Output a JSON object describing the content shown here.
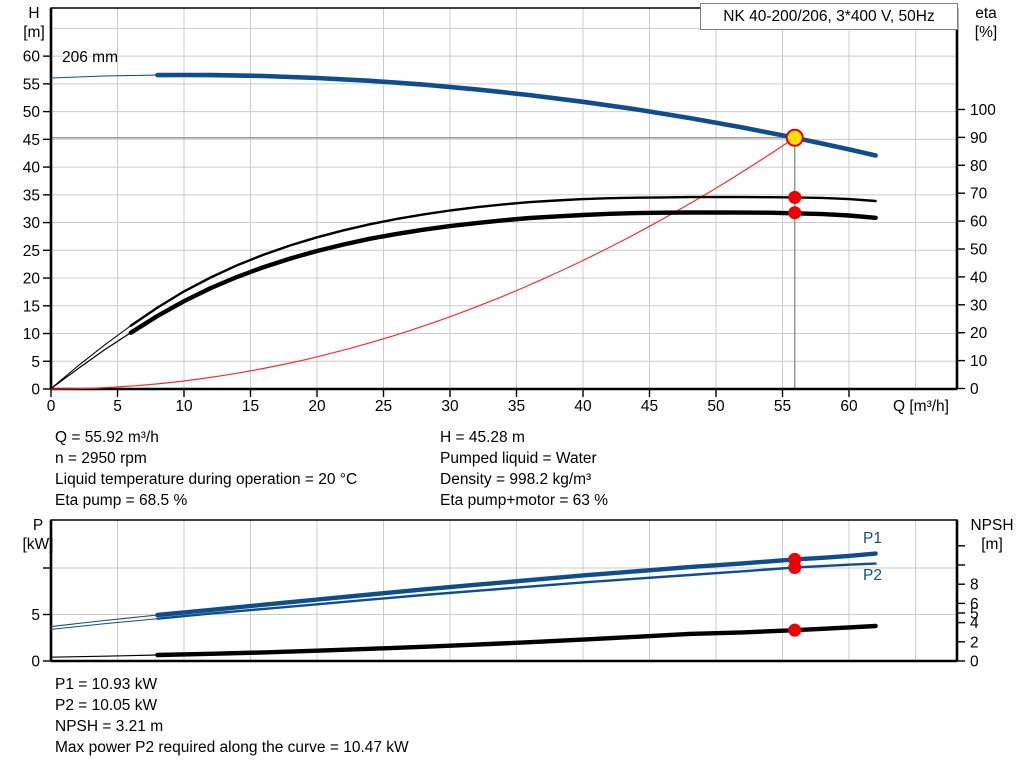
{
  "title": "NK 40-200/206, 3*400 V, 50Hz",
  "colors": {
    "curve_blue": "#0f4e8c",
    "black": "#000000",
    "system_red": "#ff2a2a",
    "dot_red": "#f20000",
    "duty_yellow": "#ffdf00",
    "duty_ring_red": "#e60000",
    "grid": "#cccccc",
    "duty_line": "#8a8a8a"
  },
  "top_chart": {
    "y_left_label": [
      "H",
      "[m]"
    ],
    "y_right_label": [
      "eta",
      "[%]"
    ],
    "x_label": "Q [m³/h]",
    "impeller": "206 mm",
    "h_ticks": [
      60,
      55,
      50,
      45,
      40,
      35,
      30,
      25,
      20,
      15,
      10,
      5,
      0
    ],
    "eta_ticks": [
      100,
      90,
      80,
      70,
      60,
      50,
      40,
      30,
      20,
      10,
      0
    ],
    "q_ticks": [
      0,
      5,
      10,
      15,
      20,
      25,
      30,
      35,
      40,
      45,
      50,
      55,
      60
    ]
  },
  "bottom_chart": {
    "y_left_label": [
      "P",
      "[kW]"
    ],
    "y_right_label": [
      "NPSH",
      "[m]"
    ],
    "p_ticks": [
      {
        "value": 10,
        "label": ""
      },
      {
        "value": 5,
        "label": "5"
      },
      {
        "value": 0,
        "label": "0"
      }
    ],
    "npsh_ticks": [
      {
        "value": 12,
        "label": ""
      },
      {
        "value": 10,
        "label": ""
      },
      {
        "value": 8,
        "label": "8"
      },
      {
        "value": 6,
        "label": "6"
      },
      {
        "value": 5,
        "label": "5"
      },
      {
        "value": 4,
        "label": "4"
      },
      {
        "value": 2,
        "label": "2"
      },
      {
        "value": 0,
        "label": "0"
      }
    ],
    "p1_label": "P1",
    "p2_label": "P2"
  },
  "info_top": {
    "left": [
      "Q = 55.92 m³/h",
      "n = 2950 rpm",
      "Liquid temperature during operation = 20 °C",
      "Eta pump = 68.5 %"
    ],
    "right": [
      "H = 45.28 m",
      "Pumped liquid = Water",
      "Density = 998.2 kg/m³",
      "Eta pump+motor = 63 %"
    ]
  },
  "info_bottom": [
    "P1 = 10.93 kW",
    "P2 = 10.05 kW",
    "NPSH = 3.21 m",
    "Max power P2 required along the curve = 10.47 kW"
  ],
  "chart_data": [
    {
      "type": "line",
      "title": "NK 40-200/206, 3*400 V, 50Hz",
      "xlabel": "Q [m³/h]",
      "ylabel": "H [m]",
      "y2label": "eta [%]",
      "xlim": [
        0,
        68
      ],
      "ylim": [
        0,
        68.7
      ],
      "y2lim": [
        0,
        100
      ],
      "grid": true,
      "duty_point": {
        "Q": 55.92,
        "H": 45.28
      },
      "system_curve": {
        "from": [
          0,
          0
        ],
        "to": [
          55.92,
          45.28
        ],
        "shape": "quadratic"
      },
      "series": [
        {
          "name": "head-206mm",
          "axis": "y",
          "color": "#0f4e8c",
          "width": 4.6,
          "thin_width": 1.1,
          "thick_from": 6,
          "points": [
            [
              0,
              56.06
            ],
            [
              4,
              56.41
            ],
            [
              8,
              56.58
            ],
            [
              10,
              56.6
            ],
            [
              12,
              56.58
            ],
            [
              16,
              56.41
            ],
            [
              20,
              56.06
            ],
            [
              24,
              55.55
            ],
            [
              28,
              54.86
            ],
            [
              32,
              54.0
            ],
            [
              36,
              52.97
            ],
            [
              40,
              51.77
            ],
            [
              44,
              50.39
            ],
            [
              48,
              48.85
            ],
            [
              52,
              47.13
            ],
            [
              55.92,
              45.28
            ],
            [
              58,
              44.24
            ],
            [
              60,
              43.18
            ],
            [
              62,
              42.08
            ]
          ]
        },
        {
          "name": "eta-pump",
          "axis": "y2",
          "color": "#000000",
          "width": 2.4,
          "thin_width": 1.0,
          "thick_from": 6,
          "points": [
            [
              0,
              0
            ],
            [
              2,
              8
            ],
            [
              4,
              15.5
            ],
            [
              6,
              22.5
            ],
            [
              8,
              29
            ],
            [
              10,
              34.8
            ],
            [
              12,
              39.8
            ],
            [
              14,
              44.2
            ],
            [
              16,
              48
            ],
            [
              18,
              51.3
            ],
            [
              20,
              54.2
            ],
            [
              22,
              56.7
            ],
            [
              24,
              58.9
            ],
            [
              26,
              60.8
            ],
            [
              28,
              62.4
            ],
            [
              30,
              63.8
            ],
            [
              32,
              65
            ],
            [
              34,
              66
            ],
            [
              36,
              66.8
            ],
            [
              38,
              67.4
            ],
            [
              40,
              67.9
            ],
            [
              42,
              68.2
            ],
            [
              44,
              68.4
            ],
            [
              46,
              68.5
            ],
            [
              48,
              68.6
            ],
            [
              50,
              68.6
            ],
            [
              52,
              68.6
            ],
            [
              54,
              68.55
            ],
            [
              55.92,
              68.5
            ],
            [
              58,
              68.3
            ],
            [
              60,
              67.9
            ],
            [
              62,
              67.2
            ]
          ]
        },
        {
          "name": "eta-pump-motor",
          "axis": "y2",
          "color": "#000000",
          "width": 4.4,
          "thin_width": 1.2,
          "thick_from": 6,
          "points": [
            [
              0,
              0
            ],
            [
              2,
              7
            ],
            [
              4,
              13.8
            ],
            [
              6,
              20
            ],
            [
              8,
              26
            ],
            [
              10,
              31.3
            ],
            [
              12,
              36
            ],
            [
              14,
              40
            ],
            [
              16,
              43.5
            ],
            [
              18,
              46.6
            ],
            [
              20,
              49.3
            ],
            [
              22,
              51.6
            ],
            [
              24,
              53.7
            ],
            [
              26,
              55.4
            ],
            [
              28,
              56.9
            ],
            [
              30,
              58.2
            ],
            [
              32,
              59.3
            ],
            [
              34,
              60.3
            ],
            [
              36,
              61.1
            ],
            [
              38,
              61.7
            ],
            [
              40,
              62.2
            ],
            [
              42,
              62.6
            ],
            [
              44,
              62.85
            ],
            [
              46,
              63
            ],
            [
              48,
              63.1
            ],
            [
              50,
              63.1
            ],
            [
              52,
              63.05
            ],
            [
              54,
              63
            ],
            [
              55.92,
              62.8
            ],
            [
              58,
              62.5
            ],
            [
              60,
              62
            ],
            [
              62,
              61.2
            ]
          ]
        }
      ],
      "marker_points": [
        {
          "series": "eta-pump",
          "Q": 55.92,
          "value": 68.5
        },
        {
          "series": "eta-pump-motor",
          "Q": 55.92,
          "value": 63
        }
      ]
    },
    {
      "type": "line",
      "xlabel": "Q [m³/h]",
      "ylabel": "P [kW]",
      "y2label": "NPSH [m]",
      "xlim": [
        0,
        68
      ],
      "ylim": [
        0,
        15.2
      ],
      "y2lim": [
        0,
        14.7
      ],
      "grid": true,
      "series": [
        {
          "name": "P1",
          "axis": "y",
          "color": "#0f4e8c",
          "width": 4.4,
          "thin_width": 1.1,
          "thick_from": 6,
          "points": [
            [
              0,
              3.7
            ],
            [
              4,
              4.35
            ],
            [
              8,
              4.95
            ],
            [
              12,
              5.5
            ],
            [
              16,
              6.05
            ],
            [
              20,
              6.6
            ],
            [
              24,
              7.15
            ],
            [
              28,
              7.7
            ],
            [
              32,
              8.2
            ],
            [
              36,
              8.7
            ],
            [
              40,
              9.2
            ],
            [
              44,
              9.65
            ],
            [
              48,
              10.1
            ],
            [
              52,
              10.5
            ],
            [
              55.92,
              10.93
            ],
            [
              58,
              11.1
            ],
            [
              60,
              11.3
            ],
            [
              62,
              11.55
            ]
          ]
        },
        {
          "name": "P2",
          "axis": "y",
          "color": "#0f4e8c",
          "width": 2.4,
          "thin_width": 1.0,
          "thick_from": 6,
          "points": [
            [
              0,
              3.4
            ],
            [
              4,
              4.0
            ],
            [
              8,
              4.55
            ],
            [
              12,
              5.1
            ],
            [
              16,
              5.6
            ],
            [
              20,
              6.1
            ],
            [
              24,
              6.6
            ],
            [
              28,
              7.1
            ],
            [
              32,
              7.55
            ],
            [
              36,
              8.0
            ],
            [
              40,
              8.45
            ],
            [
              44,
              8.85
            ],
            [
              48,
              9.25
            ],
            [
              52,
              9.65
            ],
            [
              55.92,
              10.05
            ],
            [
              58,
              10.2
            ],
            [
              60,
              10.35
            ],
            [
              62,
              10.47
            ]
          ]
        },
        {
          "name": "NPSH",
          "axis": "y2",
          "color": "#000000",
          "width": 4.4,
          "thin_width": 1.2,
          "thick_from": 6,
          "points": [
            [
              0,
              0.4
            ],
            [
              4,
              0.5
            ],
            [
              8,
              0.62
            ],
            [
              12,
              0.75
            ],
            [
              16,
              0.9
            ],
            [
              20,
              1.07
            ],
            [
              24,
              1.27
            ],
            [
              28,
              1.48
            ],
            [
              32,
              1.71
            ],
            [
              36,
              1.96
            ],
            [
              40,
              2.23
            ],
            [
              44,
              2.52
            ],
            [
              48,
              2.82
            ],
            [
              52,
              2.98
            ],
            [
              55.92,
              3.21
            ],
            [
              58,
              3.35
            ],
            [
              60,
              3.5
            ],
            [
              62,
              3.65
            ]
          ]
        }
      ],
      "marker_points": [
        {
          "series": "P1",
          "Q": 55.92,
          "value": 10.93
        },
        {
          "series": "P2",
          "Q": 55.92,
          "value": 10.05
        },
        {
          "series": "NPSH",
          "Q": 55.92,
          "value": 3.21
        }
      ]
    }
  ]
}
